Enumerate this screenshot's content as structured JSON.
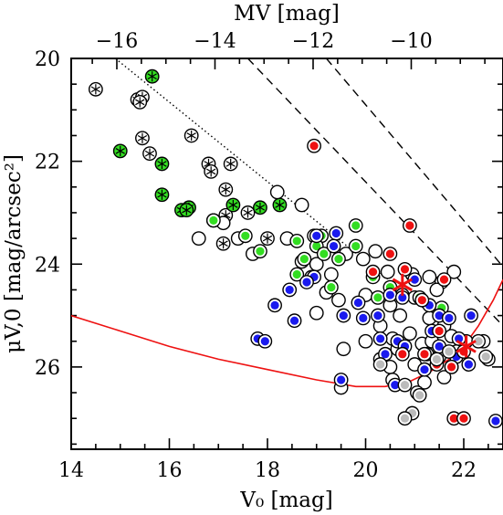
{
  "chart_data": {
    "type": "scatter",
    "title": "",
    "xlabel": "V₀ [mag]",
    "ylabel": "μV,0 [mag/arcsec²]",
    "top_xlabel": "MV [mag]",
    "xlim": [
      14,
      22.8
    ],
    "ylim": [
      27.6,
      20
    ],
    "top_xlim": [
      -16.93,
      -8.13
    ],
    "x_ticks": [
      14,
      16,
      18,
      20,
      22
    ],
    "x_tick_labels": [
      "14",
      "16",
      "18",
      "20",
      "22"
    ],
    "y_ticks": [
      20,
      22,
      24,
      26
    ],
    "y_tick_labels": [
      "20",
      "22",
      "24",
      "26"
    ],
    "top_ticks": [
      -16,
      -14,
      -12,
      -10
    ],
    "top_tick_labels": [
      "−16",
      "−14",
      "−12",
      "−10"
    ],
    "grid": false,
    "legend": "none",
    "colors": {
      "white": "#ffffff",
      "green": "#33dd22",
      "blue": "#1a1aee",
      "red": "#ee1111",
      "grey": "#bbbbbb",
      "curve": "#ee1111"
    },
    "lines": [
      {
        "style": "dotted",
        "points": [
          [
            14.9,
            20.0
          ],
          [
            21.5,
            25.1
          ]
        ]
      },
      {
        "style": "dashed",
        "points": [
          [
            17.6,
            20.0
          ],
          [
            22.8,
            25.2
          ]
        ]
      },
      {
        "style": "dashed",
        "points": [
          [
            19.2,
            20.0
          ],
          [
            22.8,
            24.05
          ]
        ]
      }
    ],
    "limit_curve": {
      "points": [
        [
          14.0,
          25.0
        ],
        [
          15.0,
          25.3
        ],
        [
          16.0,
          25.6
        ],
        [
          17.0,
          25.85
        ],
        [
          18.0,
          26.05
        ],
        [
          19.0,
          26.25
        ],
        [
          19.8,
          26.38
        ],
        [
          20.4,
          26.38
        ],
        [
          20.9,
          26.28
        ],
        [
          21.3,
          26.1
        ],
        [
          21.7,
          25.85
        ],
        [
          22.0,
          25.6
        ],
        [
          22.3,
          25.2
        ],
        [
          22.6,
          24.7
        ],
        [
          22.8,
          24.3
        ]
      ]
    },
    "star_markers": [
      [
        20.75,
        24.4
      ],
      [
        22.05,
        25.6
      ]
    ],
    "series": [
      {
        "marker": "asterisk_white",
        "points": [
          [
            14.5,
            20.6
          ],
          [
            15.35,
            20.8
          ],
          [
            15.45,
            20.75
          ],
          [
            15.4,
            20.85
          ],
          [
            15.45,
            21.55
          ],
          [
            15.6,
            21.85
          ],
          [
            16.45,
            21.5
          ],
          [
            16.8,
            22.05
          ],
          [
            16.85,
            22.2
          ],
          [
            17.25,
            22.05
          ],
          [
            17.15,
            22.55
          ],
          [
            17.15,
            23.05
          ],
          [
            16.9,
            23.15
          ],
          [
            17.1,
            23.6
          ],
          [
            17.6,
            23.0
          ],
          [
            18.0,
            23.5
          ]
        ]
      },
      {
        "marker": "asterisk_green",
        "points": [
          [
            15.65,
            20.35
          ],
          [
            15.0,
            21.8
          ],
          [
            15.85,
            22.05
          ],
          [
            15.85,
            22.65
          ],
          [
            16.25,
            22.95
          ],
          [
            16.4,
            22.9
          ],
          [
            16.35,
            22.95
          ],
          [
            17.3,
            22.85
          ],
          [
            17.85,
            22.9
          ],
          [
            18.25,
            22.85
          ]
        ]
      },
      {
        "marker": "circle_white",
        "points": [
          [
            16.6,
            23.5
          ],
          [
            17.1,
            23.2
          ],
          [
            17.4,
            23.5
          ],
          [
            17.7,
            23.8
          ],
          [
            18.2,
            22.6
          ],
          [
            18.7,
            22.85
          ],
          [
            18.4,
            23.5
          ],
          [
            18.7,
            23.95
          ],
          [
            19.0,
            24.0
          ],
          [
            19.3,
            24.2
          ],
          [
            19.6,
            23.8
          ],
          [
            19.95,
            23.9
          ],
          [
            20.2,
            23.75
          ],
          [
            20.45,
            24.15
          ],
          [
            19.2,
            24.55
          ],
          [
            19.0,
            24.95
          ],
          [
            19.45,
            24.7
          ],
          [
            20.0,
            24.6
          ],
          [
            20.5,
            24.8
          ],
          [
            20.95,
            24.2
          ],
          [
            21.3,
            24.25
          ],
          [
            21.55,
            24.35
          ],
          [
            21.45,
            24.5
          ],
          [
            21.8,
            24.15
          ],
          [
            21.0,
            24.65
          ],
          [
            20.7,
            25.0
          ],
          [
            21.3,
            25.05
          ],
          [
            21.6,
            25.2
          ],
          [
            20.3,
            25.2
          ],
          [
            20.55,
            25.45
          ],
          [
            20.9,
            25.35
          ],
          [
            21.15,
            25.55
          ],
          [
            21.35,
            25.5
          ],
          [
            21.75,
            25.4
          ],
          [
            20.0,
            25.5
          ],
          [
            19.55,
            25.65
          ],
          [
            20.3,
            25.85
          ],
          [
            20.65,
            25.65
          ],
          [
            20.5,
            26.0
          ],
          [
            21.0,
            25.95
          ],
          [
            21.5,
            25.8
          ],
          [
            21.85,
            25.7
          ],
          [
            22.05,
            25.5
          ],
          [
            22.4,
            25.5
          ],
          [
            22.5,
            25.85
          ],
          [
            21.6,
            26.2
          ],
          [
            21.2,
            26.3
          ],
          [
            20.55,
            26.25
          ],
          [
            19.5,
            26.4
          ]
        ]
      },
      {
        "marker": "circle_green",
        "points": [
          [
            16.9,
            23.15
          ],
          [
            17.55,
            23.45
          ],
          [
            17.85,
            23.75
          ],
          [
            18.6,
            23.55
          ],
          [
            18.95,
            23.45
          ],
          [
            19.1,
            23.45
          ],
          [
            19.0,
            23.65
          ],
          [
            19.15,
            23.8
          ],
          [
            18.75,
            23.9
          ],
          [
            18.6,
            24.2
          ],
          [
            18.9,
            24.25
          ],
          [
            19.45,
            23.9
          ],
          [
            19.8,
            23.25
          ],
          [
            19.8,
            23.65
          ],
          [
            19.3,
            24.45
          ],
          [
            20.15,
            24.25
          ],
          [
            20.25,
            24.65
          ],
          [
            21.1,
            24.65
          ],
          [
            21.55,
            24.85
          ],
          [
            20.75,
            24.6
          ],
          [
            20.5,
            24.45
          ]
        ]
      },
      {
        "marker": "circle_blue",
        "points": [
          [
            19.4,
            23.4
          ],
          [
            19.35,
            23.65
          ],
          [
            19.0,
            23.45
          ],
          [
            18.95,
            24.25
          ],
          [
            18.8,
            24.35
          ],
          [
            18.45,
            24.5
          ],
          [
            18.15,
            24.8
          ],
          [
            18.55,
            25.1
          ],
          [
            17.8,
            25.45
          ],
          [
            17.95,
            25.5
          ],
          [
            19.85,
            24.75
          ],
          [
            19.55,
            25.0
          ],
          [
            19.95,
            25.05
          ],
          [
            20.25,
            25.0
          ],
          [
            20.5,
            24.6
          ],
          [
            20.75,
            24.65
          ],
          [
            21.0,
            24.3
          ],
          [
            21.3,
            24.8
          ],
          [
            21.5,
            25.0
          ],
          [
            21.7,
            25.05
          ],
          [
            22.15,
            25.0
          ],
          [
            20.65,
            25.5
          ],
          [
            21.35,
            25.3
          ],
          [
            21.9,
            25.45
          ],
          [
            21.5,
            25.6
          ],
          [
            21.25,
            25.75
          ],
          [
            20.4,
            25.75
          ],
          [
            21.85,
            25.8
          ],
          [
            22.1,
            25.95
          ],
          [
            21.75,
            26.0
          ],
          [
            21.2,
            26.05
          ],
          [
            20.6,
            26.35
          ],
          [
            19.5,
            26.25
          ],
          [
            22.65,
            27.05
          ],
          [
            20.3,
            25.45
          ],
          [
            20.8,
            25.6
          ]
        ]
      },
      {
        "marker": "circle_red",
        "points": [
          [
            18.95,
            21.7
          ],
          [
            20.9,
            23.25
          ],
          [
            20.5,
            23.8
          ],
          [
            20.8,
            24.1
          ],
          [
            20.15,
            24.15
          ],
          [
            21.6,
            24.3
          ],
          [
            21.15,
            24.7
          ],
          [
            21.5,
            25.3
          ],
          [
            20.75,
            25.75
          ],
          [
            21.2,
            25.75
          ],
          [
            21.45,
            25.95
          ],
          [
            22.0,
            25.7
          ],
          [
            21.75,
            26.0
          ],
          [
            21.8,
            27.0
          ],
          [
            22.0,
            27.0
          ]
        ]
      },
      {
        "marker": "circle_grey",
        "points": [
          [
            20.3,
            25.95
          ],
          [
            20.8,
            26.35
          ],
          [
            21.05,
            26.5
          ],
          [
            21.1,
            26.55
          ],
          [
            20.95,
            26.9
          ],
          [
            20.8,
            27.0
          ],
          [
            21.45,
            25.85
          ],
          [
            21.7,
            25.7
          ],
          [
            22.45,
            25.8
          ],
          [
            22.3,
            25.5
          ]
        ]
      }
    ]
  }
}
